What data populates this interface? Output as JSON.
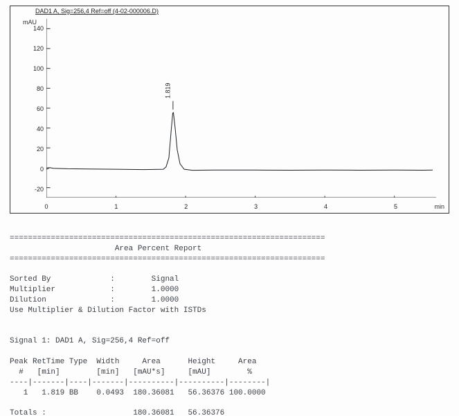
{
  "chart": {
    "title": "DAD1 A, Sig=256,4 Ref=off (4-02-000006.D)",
    "y_unit": "mAU",
    "x_unit": "min",
    "stroke_color": "#1a1f24",
    "axis_color": "#333333",
    "background_color": "#ffffff",
    "line_width": 1,
    "ylim": [
      -30,
      150
    ],
    "ytick_step": 20,
    "yticks": [
      -20,
      0,
      20,
      40,
      60,
      80,
      100,
      120,
      140
    ],
    "xlim": [
      0,
      5.6
    ],
    "xticks": [
      0,
      1,
      2,
      3,
      4,
      5
    ],
    "peak": {
      "label": "1.819",
      "rt": 1.819,
      "height_mAU": 56.36
    },
    "trace": [
      [
        0.0,
        -1.5
      ],
      [
        0.05,
        0.2
      ],
      [
        0.1,
        -0.5
      ],
      [
        0.3,
        -1.0
      ],
      [
        0.6,
        -1.2
      ],
      [
        1.0,
        -1.5
      ],
      [
        1.4,
        -1.8
      ],
      [
        1.68,
        -1.5
      ],
      [
        1.72,
        1.0
      ],
      [
        1.76,
        10.0
      ],
      [
        1.79,
        35.0
      ],
      [
        1.815,
        55.0
      ],
      [
        1.825,
        55.5
      ],
      [
        1.85,
        40.0
      ],
      [
        1.88,
        18.0
      ],
      [
        1.92,
        4.0
      ],
      [
        1.98,
        -1.5
      ],
      [
        2.1,
        -2.5
      ],
      [
        2.4,
        -2.3
      ],
      [
        3.0,
        -2.3
      ],
      [
        3.5,
        -2.4
      ],
      [
        4.0,
        -2.3
      ],
      [
        4.5,
        -2.4
      ],
      [
        5.0,
        -2.3
      ],
      [
        5.4,
        -2.4
      ],
      [
        5.55,
        -2.3
      ]
    ]
  },
  "report": {
    "rule": "=====================================================================",
    "title": "Area Percent Report",
    "sorted_by_label": "Sorted By",
    "sorted_by_value": "Signal",
    "multiplier_label": "Multiplier",
    "multiplier_value": "1.0000",
    "dilution_label": "Dilution",
    "dilution_value": "1.0000",
    "istd_note": "Use Multiplier & Dilution Factor with ISTDs",
    "signal_header": "Signal 1: DAD1 A, Sig=256,4 Ref=off",
    "col_header_1": "Peak RetTime Type  Width     Area      Height     Area",
    "col_header_2": "  #   [min]        [min]   [mAU*s]     [mAU]        %",
    "col_rule": "----|-------|----|-------|----------|----------|--------|",
    "row_1": "   1   1.819 BB    0.0493  180.36081   56.36376 100.0000",
    "totals": "Totals :                   180.36081   56.36376"
  }
}
